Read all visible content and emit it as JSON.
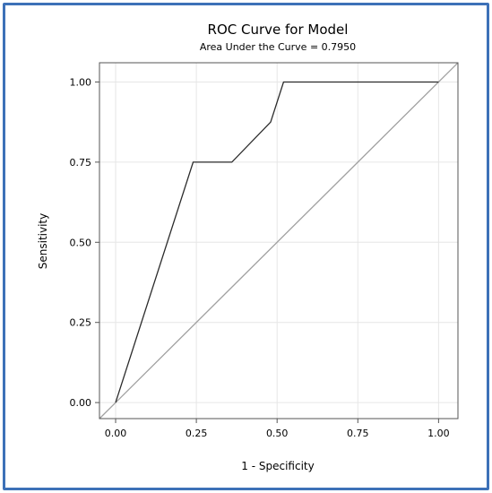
{
  "chart_data": {
    "type": "line",
    "title": "ROC Curve for Model",
    "subtitle": "Area Under the Curve = 0.7950",
    "xlabel": "1 - Specificity",
    "ylabel": "Sensitivity",
    "xlim": [
      -0.05,
      1.06
    ],
    "ylim": [
      -0.05,
      1.06
    ],
    "xticks": [
      "0.00",
      "0.25",
      "0.50",
      "0.75",
      "1.00"
    ],
    "yticks": [
      "0.00",
      "0.25",
      "0.50",
      "0.75",
      "1.00"
    ],
    "grid": true,
    "series": [
      {
        "x": [
          0.0,
          0.24,
          0.36,
          0.48,
          0.52,
          1.0
        ],
        "y": [
          0.0,
          0.75,
          0.75,
          0.875,
          1.0,
          1.0
        ],
        "color": "#2b2b2b"
      },
      {
        "x": [
          -0.05,
          1.06
        ],
        "y": [
          -0.05,
          1.06
        ],
        "color": "#a0a0a0"
      }
    ]
  }
}
